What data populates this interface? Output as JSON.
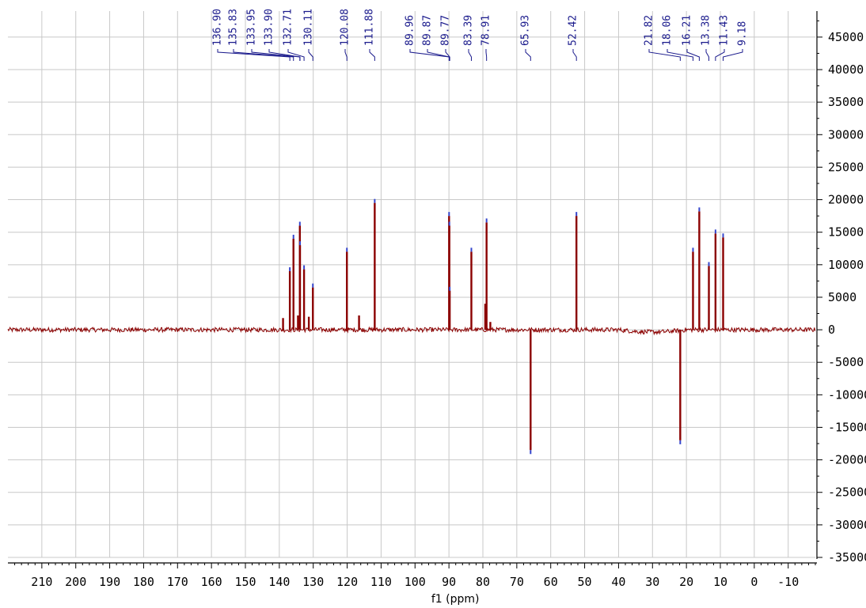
{
  "chart_data": {
    "type": "line",
    "xlabel": "f1 (ppm)",
    "ylabel": "",
    "xlim": [
      220,
      -18
    ],
    "ylim": [
      -35000,
      49000
    ],
    "x_reversed": true,
    "grid": true,
    "x_ticks": [
      210,
      200,
      190,
      180,
      170,
      160,
      150,
      140,
      130,
      120,
      110,
      100,
      90,
      80,
      70,
      60,
      50,
      40,
      30,
      20,
      10,
      0,
      -10
    ],
    "x_tick_labels": [
      "210",
      "200",
      "190",
      "180",
      "170",
      "160",
      "150",
      "140",
      "130",
      "120",
      "110",
      "100",
      "90",
      "80",
      "70",
      "60",
      "50",
      "40",
      "30",
      "20",
      "10",
      "0",
      "-10"
    ],
    "y_ticks": [
      45000,
      40000,
      35000,
      30000,
      25000,
      20000,
      15000,
      10000,
      5000,
      0,
      -5000,
      -10000,
      -15000,
      -20000,
      -25000,
      -30000,
      -35000
    ],
    "y_tick_labels": [
      "45000",
      "40000",
      "35000",
      "30000",
      "25000",
      "20000",
      "15000",
      "10000",
      "5000",
      "0",
      "-5000",
      "-10000",
      "-15000",
      "-20000",
      "-25000",
      "-30000",
      "-35000"
    ],
    "y_axis_position": "right",
    "series": [
      {
        "color": "#8b0000",
        "peaks": [
          {
            "ppm": 138.9,
            "height": 1800
          },
          {
            "ppm": 136.9,
            "height": 9000
          },
          {
            "ppm": 135.83,
            "height": 14000
          },
          {
            "ppm": 134.5,
            "height": 2200
          },
          {
            "ppm": 133.95,
            "height": 16000
          },
          {
            "ppm": 133.9,
            "height": 13000
          },
          {
            "ppm": 132.71,
            "height": 9300
          },
          {
            "ppm": 131.3,
            "height": 2000
          },
          {
            "ppm": 130.11,
            "height": 6500
          },
          {
            "ppm": 120.08,
            "height": 12000
          },
          {
            "ppm": 116.5,
            "height": 2200
          },
          {
            "ppm": 111.88,
            "height": 19500
          },
          {
            "ppm": 89.96,
            "height": 17500
          },
          {
            "ppm": 89.87,
            "height": 16000
          },
          {
            "ppm": 89.77,
            "height": 6000
          },
          {
            "ppm": 83.39,
            "height": 12000
          },
          {
            "ppm": 79.3,
            "height": 4000
          },
          {
            "ppm": 78.91,
            "height": 16500
          },
          {
            "ppm": 77.8,
            "height": 1200
          },
          {
            "ppm": 65.93,
            "height": -18500
          },
          {
            "ppm": 52.42,
            "height": 17500
          },
          {
            "ppm": 21.82,
            "height": -17000
          },
          {
            "ppm": 18.06,
            "height": 12000
          },
          {
            "ppm": 16.21,
            "height": 18200
          },
          {
            "ppm": 13.38,
            "height": 9800
          },
          {
            "ppm": 11.43,
            "height": 14800
          },
          {
            "ppm": 9.18,
            "height": 14200
          }
        ]
      }
    ],
    "peak_labels": [
      "136.90",
      "135.83",
      "133.95",
      "133.90",
      "132.71",
      "130.11",
      "120.08",
      "111.88",
      "89.96",
      "89.87",
      "89.77",
      "83.39",
      "78.91",
      "65.93",
      "52.42",
      "21.82",
      "18.06",
      "16.21",
      "13.38",
      "11.43",
      "9.18"
    ],
    "peak_label_ppm": [
      136.9,
      135.83,
      133.95,
      133.9,
      132.71,
      130.11,
      120.08,
      111.88,
      89.96,
      89.87,
      89.77,
      83.39,
      78.91,
      65.93,
      52.42,
      21.82,
      18.06,
      16.21,
      13.38,
      11.43,
      9.18
    ]
  }
}
